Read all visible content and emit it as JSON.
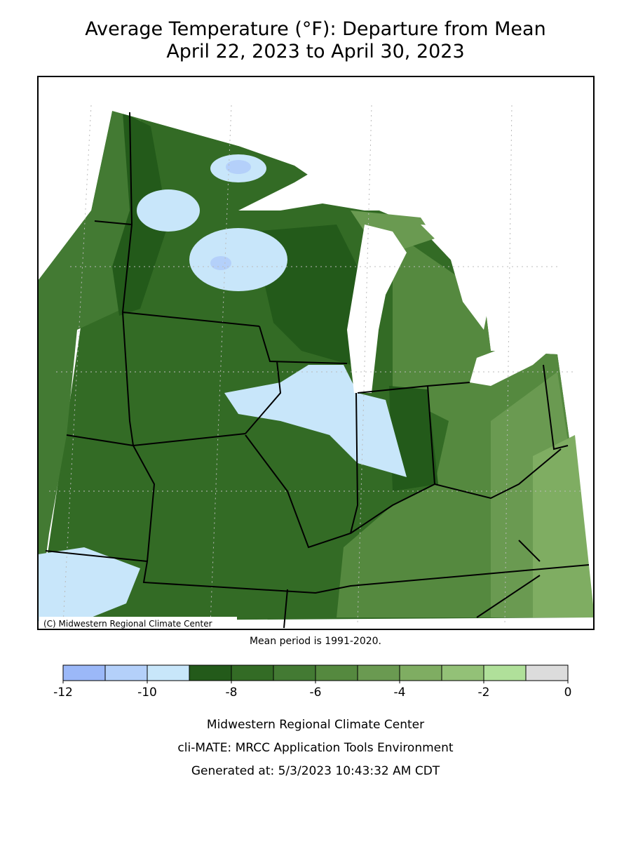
{
  "title": [
    "Average Temperature (°F): Departure from Mean",
    "April 22, 2023 to April 30, 2023"
  ],
  "map": {
    "credit": "(C) Midwestern Regional Climate Center"
  },
  "note": "Mean period is 1991-2020.",
  "legend": {
    "bins": [
      -12,
      -11,
      -10,
      -9,
      -8,
      -7,
      -6,
      -5,
      -4,
      -3,
      -2,
      -1,
      0
    ],
    "colors": [
      "#9bb8f8",
      "#b4d0fa",
      "#c8e6fa",
      "#235a1a",
      "#336b25",
      "#437a33",
      "#55893f",
      "#6a9a51",
      "#7fad62",
      "#93c177",
      "#b0e09a",
      "#dcdcdc"
    ],
    "ticks": [
      -12,
      -10,
      -8,
      -6,
      -4,
      -2,
      0
    ]
  },
  "footer": [
    "Midwestern Regional Climate Center",
    "cli-MATE: MRCC Application Tools Environment",
    "Generated at: 5/3/2023 10:43:32 AM CDT"
  ]
}
